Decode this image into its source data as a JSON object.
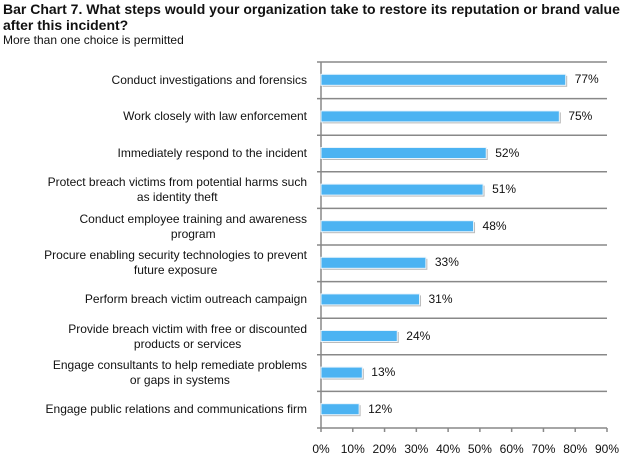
{
  "chart_data": {
    "type": "bar",
    "title": "Bar Chart 7. What steps would your organization take to restore its reputation or brand value after this incident?",
    "subtitle": "More than one choice is permitted",
    "categories": [
      "Conduct investigations and forensics",
      "Work closely with law enforcement",
      "Immediately respond to the incident",
      "Protect breach victims from potential harms such as identity theft",
      "Conduct employee training and awareness program",
      "Procure enabling security technologies to prevent future exposure",
      "Perform breach victim outreach campaign",
      "Provide breach victim with free or discounted products or services",
      "Engage consultants to help remediate problems or gaps in systems",
      "Engage public relations and communications firm"
    ],
    "category_lines": [
      [
        "Conduct investigations and forensics"
      ],
      [
        "Work closely with law enforcement"
      ],
      [
        "Immediately respond to the incident"
      ],
      [
        "Protect breach victims from potential harms such",
        "as identity theft"
      ],
      [
        "Conduct employee training and awareness",
        "program"
      ],
      [
        "Procure enabling security technologies to prevent",
        "future exposure"
      ],
      [
        "Perform breach victim outreach campaign"
      ],
      [
        "Provide breach victim with free or discounted",
        "products or services"
      ],
      [
        "Engage consultants to help remediate problems",
        "or gaps in systems"
      ],
      [
        "Engage public relations and communications firm"
      ]
    ],
    "values": [
      77,
      75,
      52,
      51,
      48,
      33,
      31,
      24,
      13,
      12
    ],
    "value_labels": [
      "77%",
      "75%",
      "52%",
      "51%",
      "48%",
      "33%",
      "31%",
      "24%",
      "13%",
      "12%"
    ],
    "xlim": [
      0,
      90
    ],
    "xticks": [
      "0%",
      "10%",
      "20%",
      "30%",
      "40%",
      "50%",
      "60%",
      "70%",
      "80%",
      "90%"
    ],
    "bar_color": "#4cb3f2",
    "grid": true
  }
}
